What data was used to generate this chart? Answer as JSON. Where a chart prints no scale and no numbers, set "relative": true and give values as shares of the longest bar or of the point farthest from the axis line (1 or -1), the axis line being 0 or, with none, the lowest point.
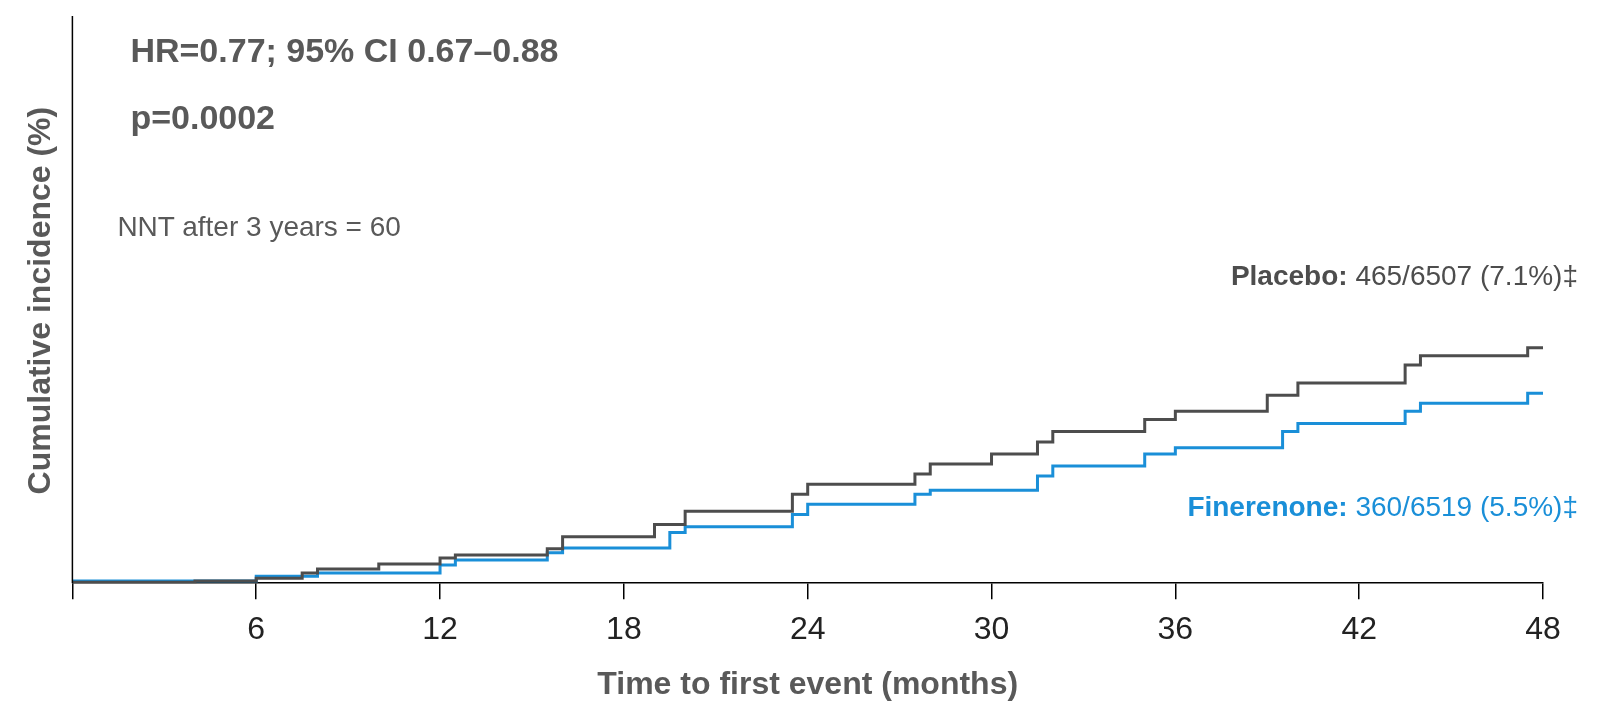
{
  "chart_data": {
    "type": "step",
    "relative": true,
    "xlabel": "Time to first event (months)",
    "ylabel": "Cumulative incidence (%)",
    "xlim": [
      0,
      48
    ],
    "xticks": [
      {
        "value": 0,
        "label": null
      },
      6,
      12,
      18,
      24,
      30,
      36,
      42,
      48
    ],
    "grid": false,
    "legend": false,
    "annotations": [
      "HR=0.77; 95% CI 0.67–0.88",
      "p=0.0002",
      "NNT after 3 years = 60",
      "465/6507 (7.1%)‡",
      "360/6519 (5.5%)‡"
    ],
    "series": [
      {
        "name": "Placebo:",
        "color": "#4d4d4d",
        "x": [
          0,
          4,
          6,
          7.5,
          8,
          10,
          12,
          12.5,
          15.5,
          16,
          19,
          20,
          23.5,
          24,
          27.5,
          28,
          30,
          31.5,
          32,
          35,
          36,
          39,
          40,
          43.5,
          44,
          47.5,
          48
        ],
        "values": [
          0,
          0.004,
          0.009,
          0.021,
          0.043,
          0.06,
          0.082,
          0.107,
          0.12,
          0.146,
          0.197,
          0.249,
          0.305,
          0.378,
          0.42,
          0.464,
          0.506,
          0.549,
          0.6,
          0.644,
          0.695,
          0.73,
          0.798,
          0.85,
          0.927,
          0.966,
          1
        ]
      },
      {
        "name": "Finerenone:",
        "color": "#1a8fd8",
        "x": [
          0,
          6,
          8,
          12,
          12.5,
          15.5,
          16,
          19.5,
          20,
          23.5,
          24,
          27.5,
          28,
          31.5,
          32,
          35,
          36,
          39.5,
          40,
          43.5,
          44,
          47.5,
          48
        ],
        "values": [
          0,
          0.009,
          0.03,
          0.043,
          0.077,
          0.099,
          0.129,
          0.15,
          0.215,
          0.24,
          0.292,
          0.335,
          0.378,
          0.395,
          0.455,
          0.498,
          0.549,
          0.575,
          0.644,
          0.678,
          0.73,
          0.764,
          0.807
        ]
      }
    ]
  }
}
